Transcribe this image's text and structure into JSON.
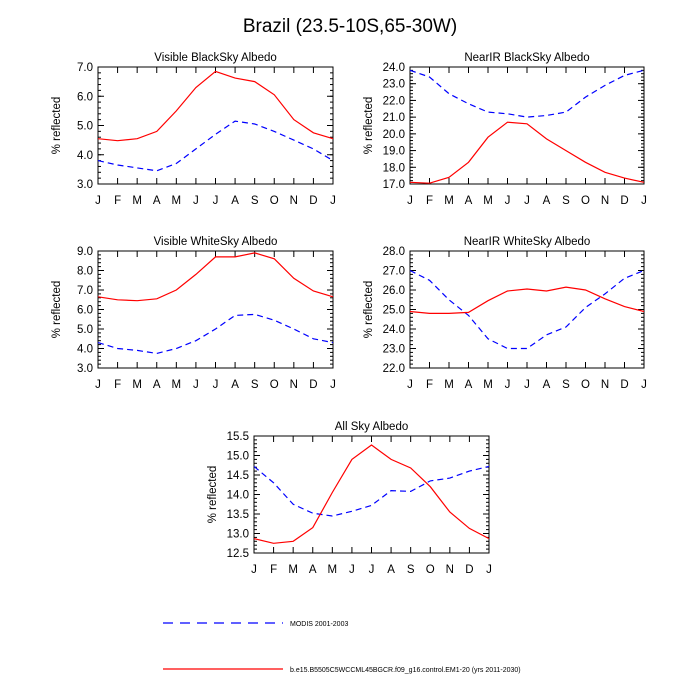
{
  "title": "Brazil (23.5-10S,65-30W)",
  "colors": {
    "modis": "#0000ff",
    "model": "#ff0000",
    "axis": "#000000"
  },
  "legend": {
    "modis_label": "MODIS 2001-2003",
    "model_label": "b.e15.B5505C5WCCML45BGCR.f09_g16.control.EM1-20 (yrs 2011-2030)"
  },
  "chart_data": [
    {
      "type": "line",
      "title": "Visible BlackSky Albedo",
      "ylabel": "% reflected",
      "xlabel": "",
      "categories": [
        "J",
        "F",
        "M",
        "A",
        "M",
        "J",
        "J",
        "A",
        "S",
        "O",
        "N",
        "D",
        "J"
      ],
      "ylim": [
        3.0,
        7.0
      ],
      "yticks": [
        "3.0",
        "4.0",
        "5.0",
        "6.0",
        "7.0"
      ],
      "series": [
        {
          "name": "MODIS 2001-2003",
          "values": [
            3.8,
            3.65,
            3.55,
            3.45,
            3.7,
            4.2,
            4.7,
            5.15,
            5.05,
            4.8,
            4.5,
            4.2,
            3.8
          ]
        },
        {
          "name": "b.e15.B5505C5WCCML45BGCR.f09_g16.control.EM1-20 (yrs 2011-2030)",
          "values": [
            4.55,
            4.48,
            4.55,
            4.8,
            5.5,
            6.3,
            6.85,
            6.62,
            6.5,
            6.05,
            5.2,
            4.75,
            4.55
          ]
        }
      ]
    },
    {
      "type": "line",
      "title": "NearIR BlackSky Albedo",
      "ylabel": "% reflected",
      "xlabel": "",
      "categories": [
        "J",
        "F",
        "M",
        "A",
        "M",
        "J",
        "J",
        "A",
        "S",
        "O",
        "N",
        "D",
        "J"
      ],
      "ylim": [
        17.0,
        24.0
      ],
      "yticks": [
        "17.0",
        "18.0",
        "19.0",
        "20.0",
        "21.0",
        "22.0",
        "23.0",
        "24.0"
      ],
      "series": [
        {
          "name": "MODIS 2001-2003",
          "values": [
            23.8,
            23.4,
            22.4,
            21.8,
            21.3,
            21.2,
            21.0,
            21.1,
            21.3,
            22.2,
            22.9,
            23.5,
            23.8
          ]
        },
        {
          "name": "b.e15.B5505C5WCCML45BGCR.f09_g16.control.EM1-20 (yrs 2011-2030)",
          "values": [
            17.1,
            17.05,
            17.4,
            18.3,
            19.8,
            20.7,
            20.6,
            19.7,
            19.0,
            18.3,
            17.7,
            17.35,
            17.1
          ]
        }
      ]
    },
    {
      "type": "line",
      "title": "Visible WhiteSky Albedo",
      "ylabel": "% reflected",
      "xlabel": "",
      "categories": [
        "J",
        "F",
        "M",
        "A",
        "M",
        "J",
        "J",
        "A",
        "S",
        "O",
        "N",
        "D",
        "J"
      ],
      "ylim": [
        3.0,
        9.0
      ],
      "yticks": [
        "3.0",
        "4.0",
        "5.0",
        "6.0",
        "7.0",
        "8.0",
        "9.0"
      ],
      "series": [
        {
          "name": "MODIS 2001-2003",
          "values": [
            4.3,
            4.0,
            3.9,
            3.75,
            4.0,
            4.4,
            5.0,
            5.7,
            5.75,
            5.45,
            5.0,
            4.5,
            4.3
          ]
        },
        {
          "name": "b.e15.B5505C5WCCML45BGCR.f09_g16.control.EM1-20 (yrs 2011-2030)",
          "values": [
            6.65,
            6.5,
            6.45,
            6.55,
            7.0,
            7.8,
            8.7,
            8.7,
            8.9,
            8.6,
            7.6,
            6.95,
            6.65
          ]
        }
      ]
    },
    {
      "type": "line",
      "title": "NearIR WhiteSky Albedo",
      "ylabel": "% reflected",
      "xlabel": "",
      "categories": [
        "J",
        "F",
        "M",
        "A",
        "M",
        "J",
        "J",
        "A",
        "S",
        "O",
        "N",
        "D",
        "J"
      ],
      "ylim": [
        22.0,
        28.0
      ],
      "yticks": [
        "22.0",
        "23.0",
        "24.0",
        "25.0",
        "26.0",
        "27.0",
        "28.0"
      ],
      "series": [
        {
          "name": "MODIS 2001-2003",
          "values": [
            27.0,
            26.5,
            25.5,
            24.7,
            23.5,
            23.0,
            23.0,
            23.7,
            24.1,
            25.1,
            25.8,
            26.6,
            27.0
          ]
        },
        {
          "name": "b.e15.B5505C5WCCML45BGCR.f09_g16.control.EM1-20 (yrs 2011-2030)",
          "values": [
            24.9,
            24.8,
            24.8,
            24.85,
            25.45,
            25.95,
            26.05,
            25.95,
            26.15,
            26.0,
            25.55,
            25.15,
            24.9
          ]
        }
      ]
    },
    {
      "type": "line",
      "title": "All Sky Albedo",
      "ylabel": "% reflected",
      "xlabel": "",
      "categories": [
        "J",
        "F",
        "M",
        "A",
        "M",
        "J",
        "J",
        "A",
        "S",
        "O",
        "N",
        "D",
        "J"
      ],
      "ylim": [
        12.5,
        15.5
      ],
      "yticks": [
        "12.5",
        "13.0",
        "13.5",
        "14.0",
        "14.5",
        "15.0",
        "15.5"
      ],
      "series": [
        {
          "name": "MODIS 2001-2003",
          "values": [
            14.72,
            14.3,
            13.75,
            13.52,
            13.45,
            13.57,
            13.72,
            14.1,
            14.08,
            14.35,
            14.42,
            14.6,
            14.72
          ]
        },
        {
          "name": "b.e15.B5505C5WCCML45BGCR.f09_g16.control.EM1-20 (yrs 2011-2030)",
          "values": [
            12.87,
            12.75,
            12.8,
            13.15,
            14.05,
            14.9,
            15.27,
            14.9,
            14.68,
            14.2,
            13.55,
            13.13,
            12.87
          ]
        }
      ]
    }
  ]
}
